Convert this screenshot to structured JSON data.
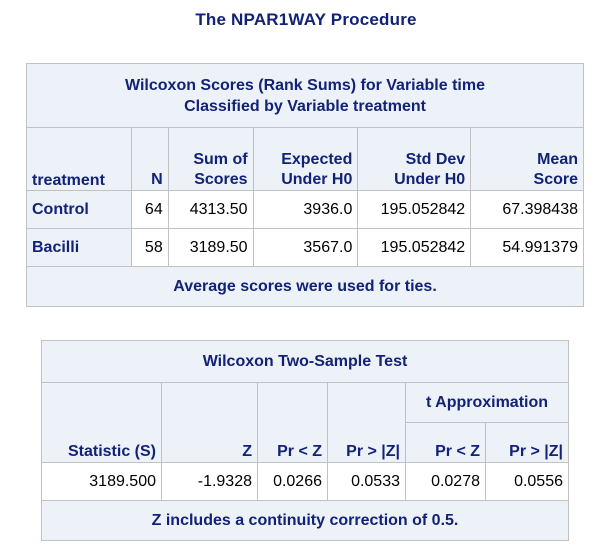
{
  "procedure_title": "The NPAR1WAY Procedure",
  "wilcoxon_scores": {
    "caption_line1": "Wilcoxon Scores (Rank Sums) for Variable time",
    "caption_line2": "Classified by Variable treatment",
    "headers": {
      "treatment": "treatment",
      "n": "N",
      "sum_line1": "Sum of",
      "sum_line2": "Scores",
      "expected_line1": "Expected",
      "expected_line2": "Under H0",
      "stddev_line1": "Std Dev",
      "stddev_line2": "Under H0",
      "mean_line1": "Mean",
      "mean_line2": "Score"
    },
    "rows": [
      {
        "treatment": "Control",
        "n": "64",
        "sum": "4313.50",
        "expected": "3936.0",
        "stddev": "195.052842",
        "mean": "67.398438"
      },
      {
        "treatment": "Bacilli",
        "n": "58",
        "sum": "3189.50",
        "expected": "3567.0",
        "stddev": "195.052842",
        "mean": "54.991379"
      }
    ],
    "footnote": "Average scores were used for ties."
  },
  "two_sample_test": {
    "caption": "Wilcoxon Two-Sample Test",
    "span_header": "t Approximation",
    "headers": {
      "statistic": "Statistic (S)",
      "z": "Z",
      "pr_lt_z": "Pr < Z",
      "pr_gt_abs_z": "Pr > |Z|",
      "t_pr_lt_z": "Pr < Z",
      "t_pr_gt_abs_z": "Pr > |Z|"
    },
    "row": {
      "statistic": "3189.500",
      "z": "-1.9328",
      "pr_lt_z": "0.0266",
      "pr_gt_abs_z": "0.0533",
      "t_pr_lt_z": "0.0278",
      "t_pr_gt_abs_z": "0.0556"
    },
    "footnote": "Z includes a continuity correction of 0.5."
  },
  "colors": {
    "header_text": "#112277",
    "header_background": "#edf2f9",
    "cell_background": "#ffffff",
    "border": "#c1c1c1"
  }
}
